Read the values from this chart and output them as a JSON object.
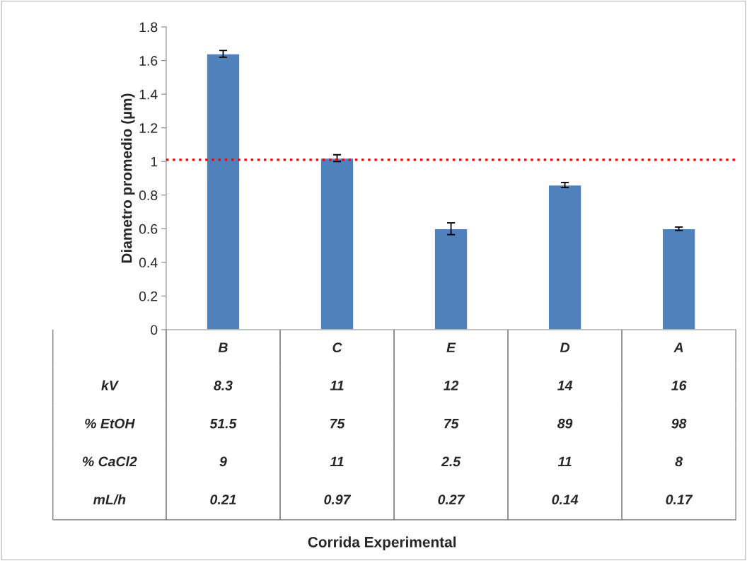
{
  "chart_data": {
    "type": "bar",
    "ylabel": "Diametro promedio (µm)",
    "categories": [
      "B",
      "C",
      "E",
      "D",
      "A"
    ],
    "values": [
      1.64,
      1.02,
      0.6,
      0.86,
      0.6
    ],
    "errors": [
      0.02,
      0.02,
      0.035,
      0.015,
      0.01
    ],
    "color": "#4f81bd",
    "ylim": [
      0,
      1.8
    ],
    "yticks": [
      0,
      0.2,
      0.4,
      0.6,
      0.8,
      1,
      1.2,
      1.4,
      1.6,
      1.8
    ],
    "grid": false,
    "legend": false,
    "ref_lines": [
      {
        "axis": "y",
        "value": 1.01,
        "color": "#ff0000",
        "line_style": "dotted"
      }
    ],
    "annotations": [
      "kV",
      "8.3",
      "11",
      "12",
      "14",
      "16",
      "% EtOH",
      "51.5",
      "75",
      "75",
      "89",
      "98",
      "% CaCl2",
      "9",
      "11",
      "2.5",
      "11",
      "8",
      "mL/h",
      "0.21",
      "0.97",
      "0.27",
      "0.14",
      "0.17",
      "Corrida Experimental"
    ]
  }
}
